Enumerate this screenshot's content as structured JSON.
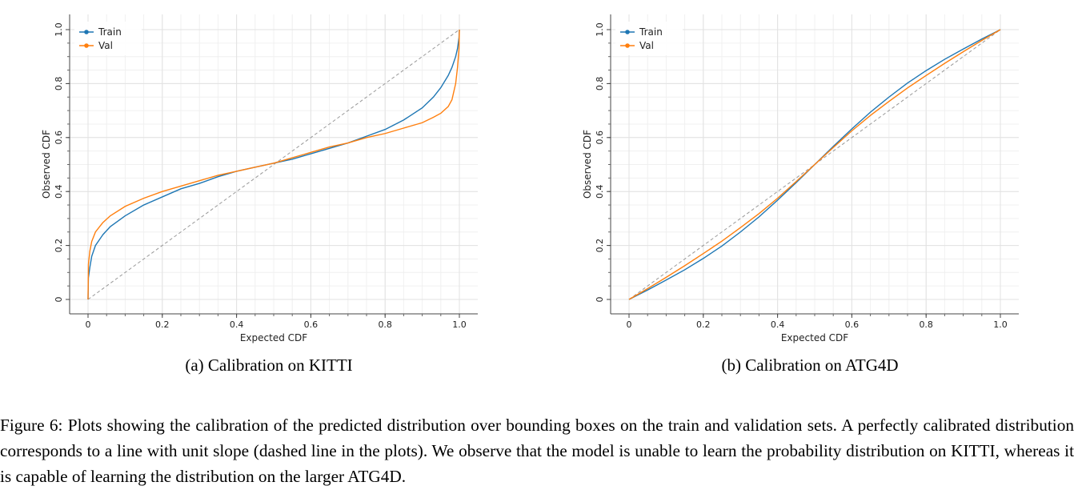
{
  "chart_data": [
    {
      "type": "line",
      "subcaption": "(a) Calibration on KITTI",
      "xlabel": "Expected CDF",
      "ylabel": "Observed CDF",
      "xlim": [
        0,
        1
      ],
      "ylim": [
        0,
        1
      ],
      "xticks": [
        0,
        0.2,
        0.4,
        0.6,
        0.8,
        1.0
      ],
      "xtick_labels": [
        "0",
        "0.2",
        "0.4",
        "0.6",
        "0.8",
        "1.0"
      ],
      "yticks": [
        0,
        0.2,
        0.4,
        0.6,
        0.8,
        1.0
      ],
      "ytick_labels": [
        "0",
        "0.2",
        "0.4",
        "0.6",
        "0.8",
        "1.0"
      ],
      "grid": true,
      "legend_position": "top-left",
      "reference_line": "dashed unit slope",
      "series": [
        {
          "name": "Train",
          "color": "#1f77b4",
          "x": [
            0,
            0.001,
            0.005,
            0.01,
            0.02,
            0.04,
            0.06,
            0.1,
            0.15,
            0.2,
            0.25,
            0.3,
            0.35,
            0.4,
            0.45,
            0.5,
            0.55,
            0.6,
            0.65,
            0.7,
            0.75,
            0.8,
            0.85,
            0.9,
            0.93,
            0.95,
            0.97,
            0.98,
            0.99,
            0.995,
            0.999,
            1.0
          ],
          "y": [
            0.0,
            0.08,
            0.12,
            0.16,
            0.2,
            0.24,
            0.27,
            0.31,
            0.35,
            0.38,
            0.41,
            0.43,
            0.455,
            0.475,
            0.49,
            0.505,
            0.52,
            0.54,
            0.56,
            0.58,
            0.605,
            0.63,
            0.665,
            0.71,
            0.75,
            0.785,
            0.83,
            0.86,
            0.9,
            0.93,
            0.97,
            1.0
          ]
        },
        {
          "name": "Val",
          "color": "#ff7f0e",
          "x": [
            0,
            0.001,
            0.005,
            0.01,
            0.02,
            0.04,
            0.06,
            0.1,
            0.15,
            0.2,
            0.25,
            0.3,
            0.35,
            0.4,
            0.45,
            0.5,
            0.55,
            0.6,
            0.65,
            0.7,
            0.75,
            0.8,
            0.85,
            0.9,
            0.93,
            0.95,
            0.97,
            0.98,
            0.99,
            0.995,
            0.999,
            1.0
          ],
          "y": [
            0.0,
            0.13,
            0.18,
            0.215,
            0.25,
            0.285,
            0.31,
            0.345,
            0.375,
            0.4,
            0.42,
            0.44,
            0.46,
            0.475,
            0.49,
            0.505,
            0.525,
            0.545,
            0.565,
            0.58,
            0.6,
            0.615,
            0.635,
            0.655,
            0.675,
            0.69,
            0.715,
            0.74,
            0.8,
            0.86,
            0.93,
            1.0
          ]
        }
      ]
    },
    {
      "type": "line",
      "subcaption": "(b) Calibration on ATG4D",
      "xlabel": "Expected CDF",
      "ylabel": "Observed CDF",
      "xlim": [
        0,
        1
      ],
      "ylim": [
        0,
        1
      ],
      "xticks": [
        0,
        0.2,
        0.4,
        0.6,
        0.8,
        1.0
      ],
      "xtick_labels": [
        "0",
        "0.2",
        "0.4",
        "0.6",
        "0.8",
        "1.0"
      ],
      "yticks": [
        0,
        0.2,
        0.4,
        0.6,
        0.8,
        1.0
      ],
      "ytick_labels": [
        "0",
        "0.2",
        "0.4",
        "0.6",
        "0.8",
        "1.0"
      ],
      "grid": true,
      "legend_position": "top-left",
      "reference_line": "dashed unit slope",
      "series": [
        {
          "name": "Train",
          "color": "#1f77b4",
          "x": [
            0,
            0.05,
            0.1,
            0.15,
            0.2,
            0.25,
            0.3,
            0.35,
            0.4,
            0.45,
            0.5,
            0.55,
            0.6,
            0.65,
            0.7,
            0.75,
            0.8,
            0.85,
            0.9,
            0.95,
            1.0
          ],
          "y": [
            0.0,
            0.035,
            0.072,
            0.11,
            0.152,
            0.198,
            0.25,
            0.306,
            0.368,
            0.433,
            0.5,
            0.567,
            0.632,
            0.694,
            0.75,
            0.802,
            0.848,
            0.89,
            0.928,
            0.965,
            1.0
          ]
        },
        {
          "name": "Val",
          "color": "#ff7f0e",
          "x": [
            0,
            0.05,
            0.1,
            0.15,
            0.2,
            0.25,
            0.3,
            0.35,
            0.4,
            0.45,
            0.5,
            0.55,
            0.6,
            0.65,
            0.7,
            0.75,
            0.8,
            0.85,
            0.9,
            0.95,
            1.0
          ],
          "y": [
            0.0,
            0.04,
            0.082,
            0.125,
            0.17,
            0.216,
            0.266,
            0.318,
            0.375,
            0.437,
            0.5,
            0.563,
            0.625,
            0.682,
            0.734,
            0.784,
            0.83,
            0.875,
            0.918,
            0.96,
            1.0
          ]
        }
      ]
    }
  ],
  "figure_caption": "Figure 6: Plots showing the calibration of the predicted distribution over bounding boxes on the train and validation sets. A perfectly calibrated distribution corresponds to a line with unit slope (dashed line in the plots). We observe that the model is unable to learn the probability distribution on KITTI, whereas it is capable of learning the distribution on the larger ATG4D."
}
